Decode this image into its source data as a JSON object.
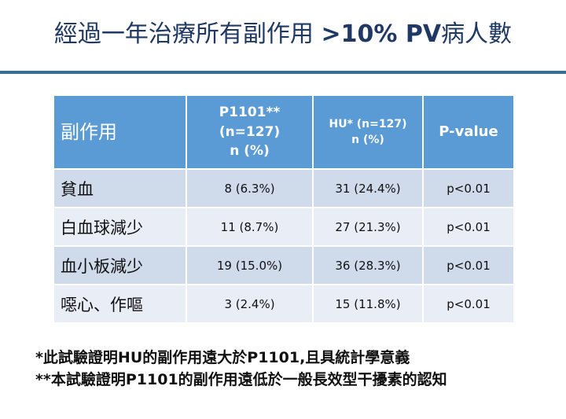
{
  "title": {
    "cjk": "經過一年治療所有副作用 ",
    "latin": ">10% PV",
    "suffix": "病人數"
  },
  "table": {
    "header": {
      "col1": "副作用",
      "col2_line1": "P1101** (n=127)",
      "col2_line2": "n (%)",
      "col3_line1": "HU* (n=127)",
      "col3_line2": "n (%)",
      "col4": "P-value"
    },
    "rows": [
      {
        "name": "貧血",
        "p1101": "8 (6.3%)",
        "hu": "31 (24.4%)",
        "pvalue": "p<0.01"
      },
      {
        "name": "白血球減少",
        "p1101": "11 (8.7%)",
        "hu": "27 (21.3%)",
        "pvalue": "p<0.01"
      },
      {
        "name": "血小板減少",
        "p1101": "19 (15.0%)",
        "hu": "36 (28.3%)",
        "pvalue": "p<0.01"
      },
      {
        "name": "噁心、作嘔",
        "p1101": "3 (2.4%)",
        "hu": "15 (11.8%)",
        "pvalue": "p<0.01"
      }
    ]
  },
  "notes": [
    "*此試驗證明HU的副作用遠大於P1101,且具統計學意義",
    "**本試驗證明P1101的副作用遠低於一般長效型干擾素的認知"
  ],
  "colors": {
    "header_bg": "#5b9bd5",
    "row_odd": "#cfdaeb",
    "row_even": "#e9eef6",
    "rule": "#3b6e8f",
    "title": "#1f3864"
  }
}
